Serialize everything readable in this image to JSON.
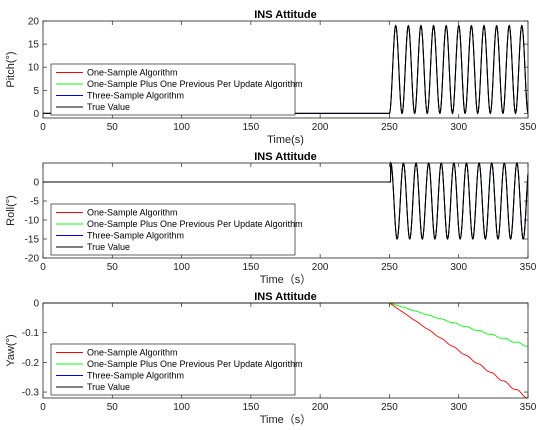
{
  "chart_data": [
    {
      "id": "pitch",
      "type": "line",
      "title": "INS Attitude",
      "xlabel": "Time(s)",
      "ylabel": "Pitch(°)",
      "xlim": [
        0,
        350
      ],
      "ylim": [
        -1,
        20
      ],
      "xticks": [
        0,
        50,
        100,
        150,
        200,
        250,
        300,
        350
      ],
      "yticks": [
        0,
        5,
        10,
        15,
        20
      ],
      "legend_location": "middle-left",
      "signal": {
        "kind": "sine",
        "baseline": 0,
        "start": 250,
        "end": 350,
        "offset": 9.5,
        "amplitude": 9.5,
        "period": 9.1,
        "phase": "trough-at-start"
      },
      "series": [
        {
          "name": "One-Sample Algorithm",
          "color": "#ff0000"
        },
        {
          "name": "One-Sample Plus One Previous Per Update Algorithm",
          "color": "#00ff00"
        },
        {
          "name": "Three-Sample Algorithm",
          "color": "#0000ff"
        },
        {
          "name": "True Value",
          "color": "#000000"
        }
      ]
    },
    {
      "id": "roll",
      "type": "line",
      "title": "INS Attitude",
      "xlabel": "Time（s）",
      "ylabel": "Roll(°)",
      "xlim": [
        0,
        350
      ],
      "ylim": [
        -20,
        5
      ],
      "xticks": [
        0,
        50,
        100,
        150,
        200,
        250,
        300,
        350
      ],
      "yticks": [
        -20,
        -15,
        -10,
        -5,
        0
      ],
      "legend_location": "lower-left",
      "signal": {
        "kind": "sine",
        "baseline": 0,
        "start": 251,
        "end": 350,
        "offset": -5,
        "amplitude": 10,
        "period": 9.1,
        "phase": "crest-at-start"
      },
      "series": [
        {
          "name": "One-Sample Algorithm",
          "color": "#ff0000"
        },
        {
          "name": "One-Sample Plus One Previous Per Update Algorithm",
          "color": "#00ff00"
        },
        {
          "name": "Three-Sample Algorithm",
          "color": "#0000ff"
        },
        {
          "name": "True Value",
          "color": "#000000"
        }
      ]
    },
    {
      "id": "yaw",
      "type": "line",
      "title": "INS Attitude",
      "xlabel": "Time（s）",
      "ylabel": "Yaw(°)",
      "xlim": [
        0,
        350
      ],
      "ylim": [
        -0.32,
        0
      ],
      "xticks": [
        0,
        50,
        100,
        150,
        200,
        250,
        300,
        350
      ],
      "yticks": [
        -0.3,
        -0.2,
        -0.1,
        0
      ],
      "legend_location": "lower-left",
      "series": [
        {
          "name": "One-Sample Algorithm",
          "color": "#ff0000",
          "start": 250,
          "end_value": -0.32,
          "ripple": 0.004
        },
        {
          "name": "One-Sample Plus One Previous Per Update Algorithm",
          "color": "#00ff00",
          "start": 250,
          "end_value": -0.145,
          "ripple": 0.003
        },
        {
          "name": "Three-Sample Algorithm",
          "color": "#0000ff",
          "start": 250,
          "end_value": 0,
          "ripple": 0
        },
        {
          "name": "True Value",
          "color": "#000000",
          "start": 250,
          "end_value": 0,
          "ripple": 0
        }
      ]
    }
  ]
}
